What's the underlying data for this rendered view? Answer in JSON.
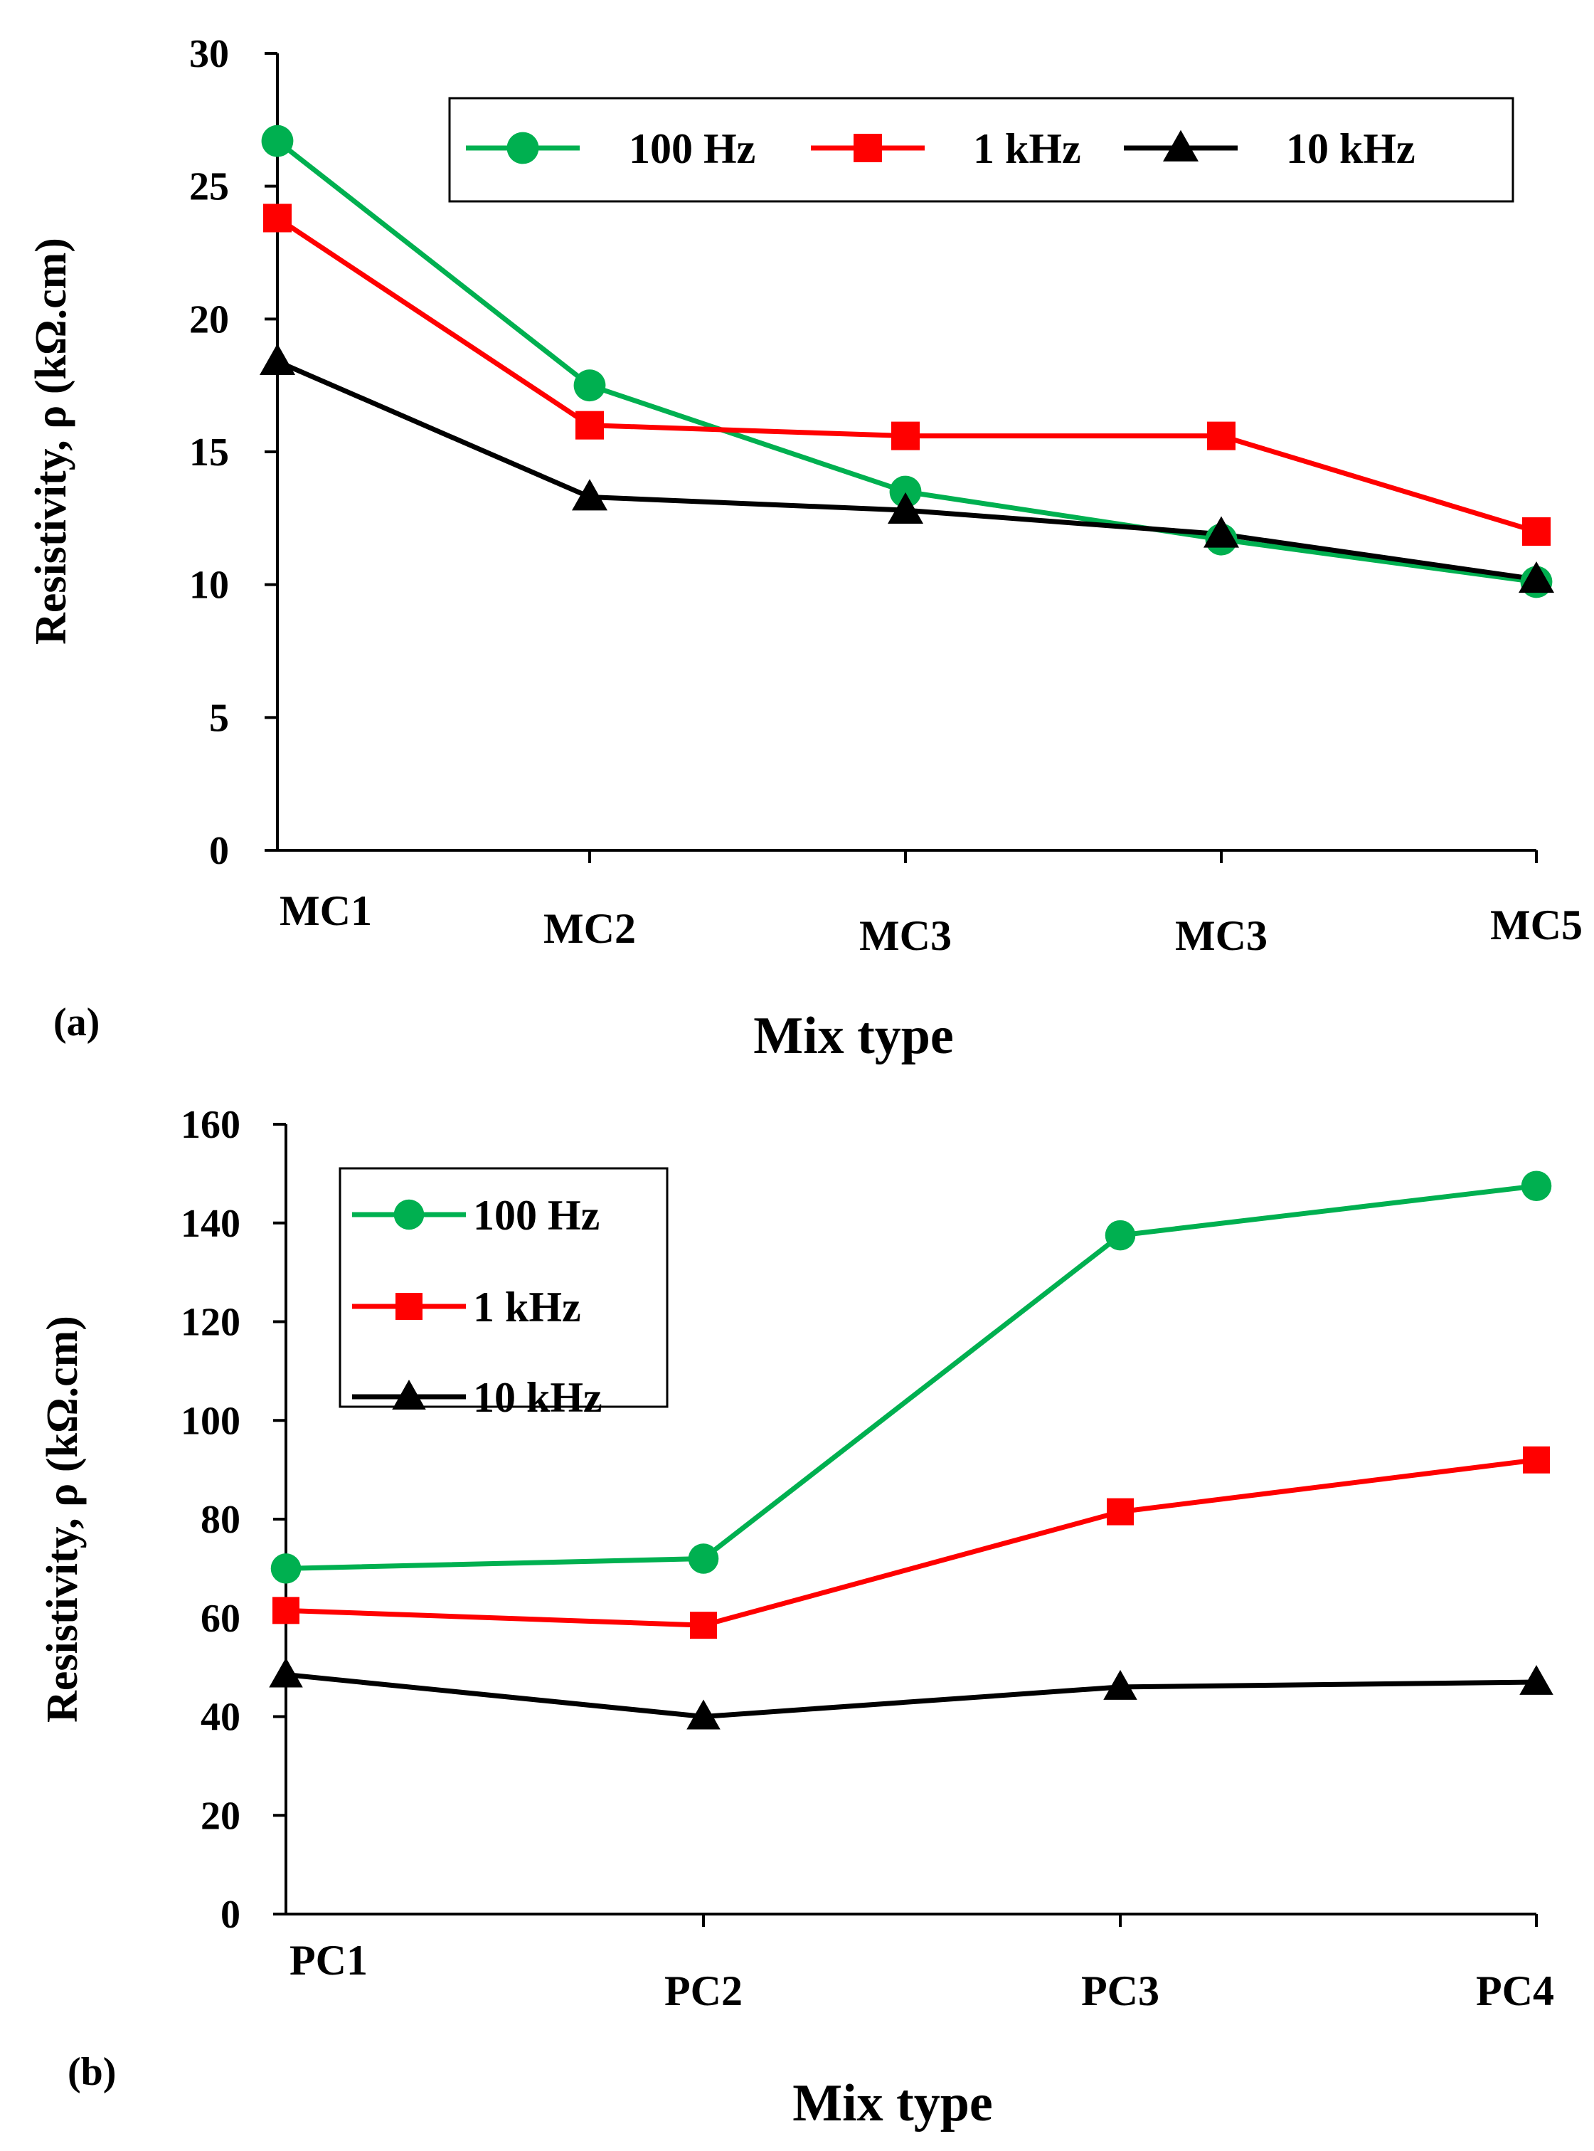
{
  "colors": {
    "series_100hz": "#00B050",
    "series_1khz": "#FF0000",
    "series_10khz": "#000000"
  },
  "chart_data": [
    {
      "type": "line",
      "panel_label": "(a)",
      "xlabel": "Mix type",
      "ylabel": "Resistivity, ρ (kΩ.cm)",
      "categories": [
        "MC1",
        "MC2",
        "MC3",
        "MC3",
        "MC5"
      ],
      "ylim": [
        0,
        30
      ],
      "yticks": [
        0,
        5,
        10,
        15,
        20,
        25,
        30
      ],
      "ytick_labels": [
        "0",
        "5",
        "10",
        "15",
        "20",
        "25",
        "30"
      ],
      "legend_position": "top-right",
      "legend_layout": "horizontal",
      "series": [
        {
          "name": "100 Hz",
          "marker": "circle",
          "color": "#00B050",
          "values": [
            26.7,
            17.5,
            13.5,
            11.7,
            10.1
          ]
        },
        {
          "name": "1 kHz",
          "marker": "square",
          "color": "#FF0000",
          "values": [
            23.8,
            16.0,
            15.6,
            15.6,
            12.0
          ]
        },
        {
          "name": "10 kHz",
          "marker": "triangle",
          "color": "#000000",
          "values": [
            18.4,
            13.3,
            12.8,
            11.9,
            10.2
          ]
        }
      ]
    },
    {
      "type": "line",
      "panel_label": "(b)",
      "xlabel": "Mix type",
      "ylabel": "Resistivity, ρ (kΩ.cm)",
      "categories": [
        "PC1",
        "PC2",
        "PC3",
        "PC4"
      ],
      "ylim": [
        0,
        160
      ],
      "yticks": [
        0,
        20,
        40,
        60,
        80,
        100,
        120,
        140,
        160
      ],
      "ytick_labels": [
        "0",
        "20",
        "40",
        "60",
        "80",
        "100",
        "120",
        "140",
        "160"
      ],
      "legend_position": "top-left",
      "legend_layout": "vertical",
      "series": [
        {
          "name": "100 Hz",
          "marker": "circle",
          "color": "#00B050",
          "values": [
            70,
            72,
            137.5,
            147.5
          ]
        },
        {
          "name": "1 kHz",
          "marker": "square",
          "color": "#FF0000",
          "values": [
            61.5,
            58.5,
            81.5,
            92
          ]
        },
        {
          "name": "10 kHz",
          "marker": "triangle",
          "color": "#000000",
          "values": [
            48.5,
            40,
            46,
            47
          ]
        }
      ]
    }
  ]
}
